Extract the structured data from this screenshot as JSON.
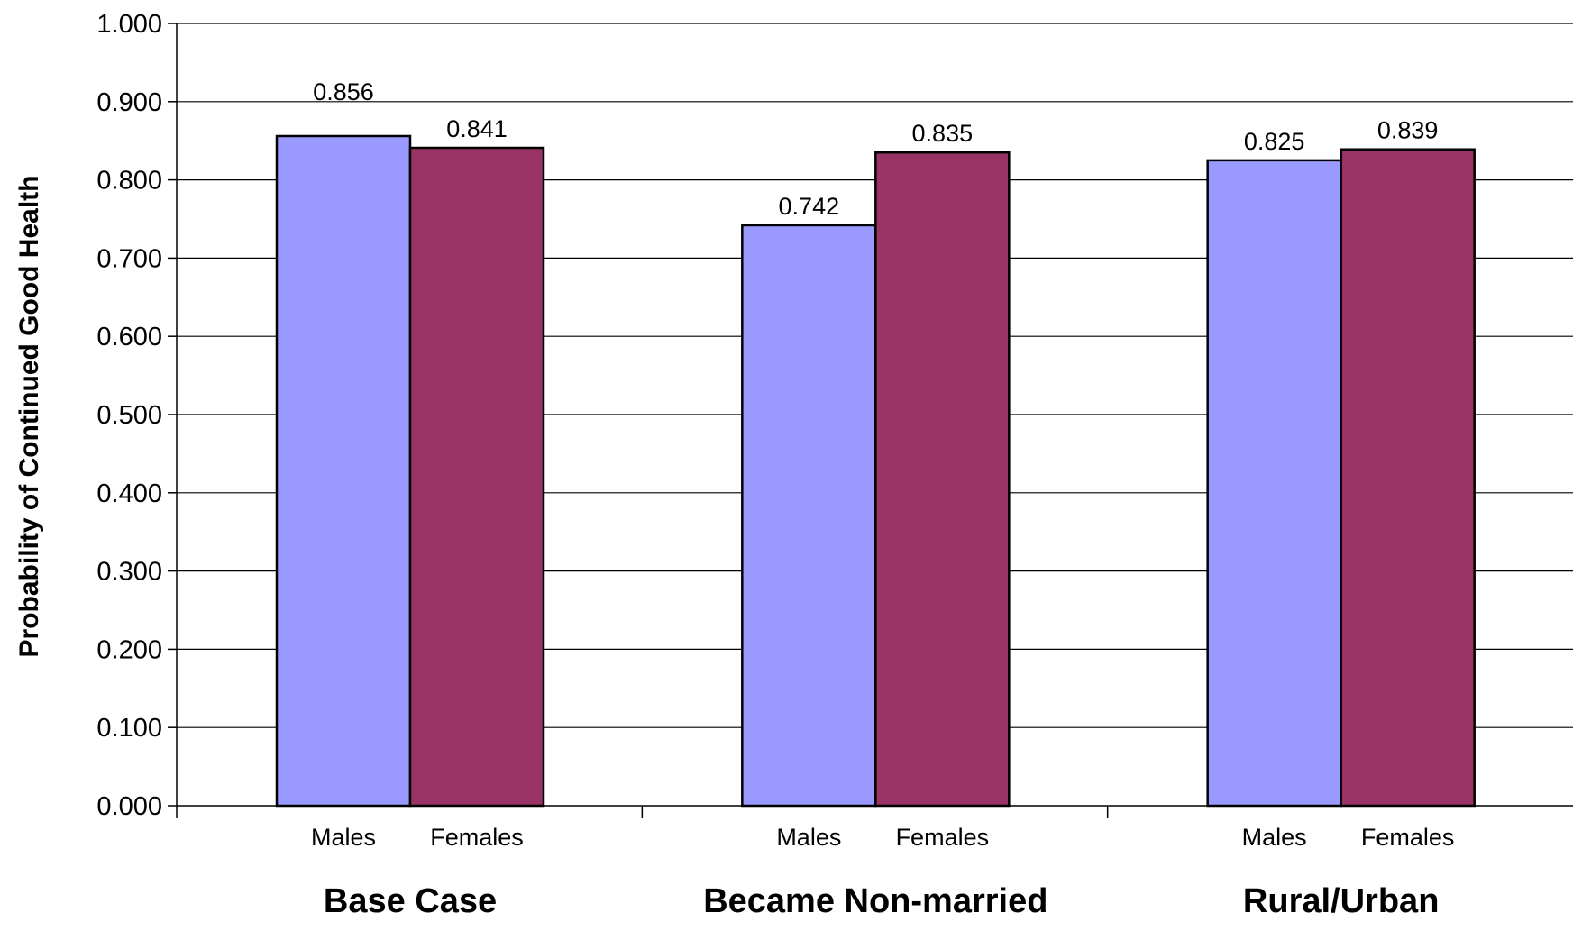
{
  "chart_data": {
    "type": "bar",
    "ylabel": "Probability of Continued Good Health",
    "ylim": [
      0,
      1
    ],
    "yticks": [
      "0.000",
      "0.100",
      "0.200",
      "0.300",
      "0.400",
      "0.500",
      "0.600",
      "0.700",
      "0.800",
      "0.900",
      "1.000"
    ],
    "grid": true,
    "groups": [
      {
        "name": "Base Case",
        "bars": [
          {
            "category": "Males",
            "value": 0.856,
            "label": "0.856"
          },
          {
            "category": "Females",
            "value": 0.841,
            "label": "0.841"
          }
        ]
      },
      {
        "name": "Became Non-married",
        "bars": [
          {
            "category": "Males",
            "value": 0.742,
            "label": "0.742"
          },
          {
            "category": "Females",
            "value": 0.835,
            "label": "0.835"
          }
        ]
      },
      {
        "name": "Rural/Urban",
        "bars": [
          {
            "category": "Males",
            "value": 0.825,
            "label": "0.825"
          },
          {
            "category": "Females",
            "value": 0.839,
            "label": "0.839"
          }
        ]
      }
    ],
    "colors": {
      "Males": "#9999FF",
      "Females": "#993366"
    }
  }
}
